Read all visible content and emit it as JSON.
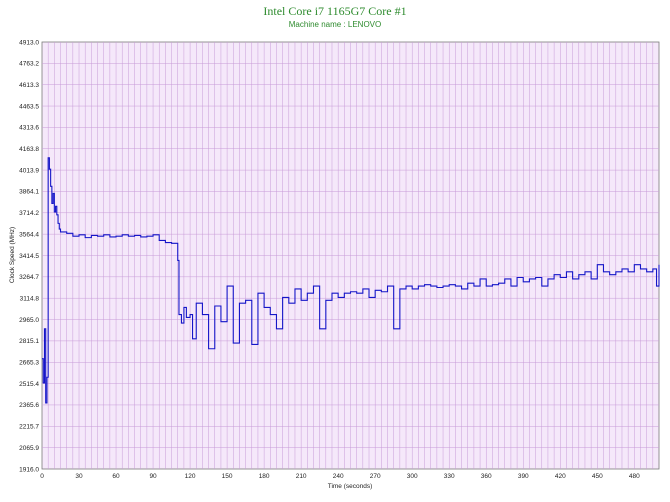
{
  "chart_data": {
    "type": "line",
    "title": "Intel Core i7 1165G7 Core #1",
    "subtitle": "Machine name : LENOVO",
    "xlabel": "Time (seconds)",
    "ylabel": "Clock Speed (MHz)",
    "xlim": [
      0,
      500
    ],
    "ylim": [
      1916.0,
      4913.0
    ],
    "x_ticks": [
      0,
      30,
      60,
      90,
      120,
      150,
      180,
      210,
      240,
      270,
      300,
      330,
      360,
      390,
      420,
      450,
      480
    ],
    "y_ticks": [
      "1916.0",
      "2065.9",
      "2215.7",
      "2365.6",
      "2515.4",
      "2665.3",
      "2815.1",
      "2965.0",
      "3114.8",
      "3264.7",
      "3414.5",
      "3564.4",
      "3714.2",
      "3864.1",
      "4013.9",
      "4163.8",
      "4313.6",
      "4463.5",
      "4613.3",
      "4763.2",
      "4913.0"
    ],
    "grid": true,
    "legend": "none",
    "colors": {
      "line": "#1515c8",
      "plot_background": "#f5e8fa",
      "grid": "#c89bd8",
      "title": "#2e8b2e"
    },
    "series": [
      {
        "values": [
          [
            0,
            2690
          ],
          [
            1,
            2520
          ],
          [
            2,
            2900
          ],
          [
            3,
            2380
          ],
          [
            4,
            2560
          ],
          [
            5,
            4100
          ],
          [
            6,
            4020
          ],
          [
            7,
            3900
          ],
          [
            8,
            3780
          ],
          [
            9,
            3850
          ],
          [
            10,
            3720
          ],
          [
            11,
            3760
          ],
          [
            12,
            3700
          ],
          [
            13,
            3640
          ],
          [
            14,
            3600
          ],
          [
            15,
            3580
          ],
          [
            20,
            3570
          ],
          [
            25,
            3550
          ],
          [
            30,
            3560
          ],
          [
            35,
            3540
          ],
          [
            40,
            3555
          ],
          [
            45,
            3550
          ],
          [
            50,
            3560
          ],
          [
            55,
            3545
          ],
          [
            60,
            3550
          ],
          [
            65,
            3560
          ],
          [
            70,
            3550
          ],
          [
            75,
            3555
          ],
          [
            80,
            3545
          ],
          [
            85,
            3550
          ],
          [
            90,
            3560
          ],
          [
            95,
            3520
          ],
          [
            100,
            3505
          ],
          [
            105,
            3500
          ],
          [
            108,
            3500
          ],
          [
            110,
            3380
          ],
          [
            111,
            3000
          ],
          [
            113,
            2940
          ],
          [
            115,
            3050
          ],
          [
            117,
            2980
          ],
          [
            120,
            3000
          ],
          [
            122,
            2830
          ],
          [
            125,
            3080
          ],
          [
            130,
            3000
          ],
          [
            135,
            2760
          ],
          [
            140,
            3060
          ],
          [
            145,
            2950
          ],
          [
            150,
            3200
          ],
          [
            155,
            2800
          ],
          [
            160,
            3080
          ],
          [
            165,
            3100
          ],
          [
            170,
            2790
          ],
          [
            175,
            3150
          ],
          [
            180,
            3050
          ],
          [
            185,
            3000
          ],
          [
            190,
            2900
          ],
          [
            195,
            3120
          ],
          [
            200,
            3080
          ],
          [
            205,
            3180
          ],
          [
            210,
            3100
          ],
          [
            215,
            3150
          ],
          [
            220,
            3200
          ],
          [
            225,
            2900
          ],
          [
            230,
            3100
          ],
          [
            235,
            3150
          ],
          [
            240,
            3120
          ],
          [
            245,
            3150
          ],
          [
            250,
            3160
          ],
          [
            255,
            3150
          ],
          [
            260,
            3180
          ],
          [
            265,
            3120
          ],
          [
            270,
            3170
          ],
          [
            275,
            3160
          ],
          [
            280,
            3200
          ],
          [
            285,
            2900
          ],
          [
            290,
            3180
          ],
          [
            295,
            3200
          ],
          [
            300,
            3180
          ],
          [
            305,
            3200
          ],
          [
            310,
            3210
          ],
          [
            315,
            3200
          ],
          [
            320,
            3190
          ],
          [
            325,
            3200
          ],
          [
            330,
            3210
          ],
          [
            335,
            3200
          ],
          [
            340,
            3180
          ],
          [
            345,
            3220
          ],
          [
            350,
            3200
          ],
          [
            355,
            3250
          ],
          [
            360,
            3200
          ],
          [
            365,
            3210
          ],
          [
            370,
            3220
          ],
          [
            375,
            3250
          ],
          [
            380,
            3200
          ],
          [
            385,
            3260
          ],
          [
            390,
            3230
          ],
          [
            395,
            3250
          ],
          [
            400,
            3260
          ],
          [
            405,
            3200
          ],
          [
            410,
            3250
          ],
          [
            415,
            3280
          ],
          [
            420,
            3260
          ],
          [
            425,
            3300
          ],
          [
            430,
            3250
          ],
          [
            435,
            3280
          ],
          [
            440,
            3300
          ],
          [
            445,
            3250
          ],
          [
            450,
            3350
          ],
          [
            455,
            3300
          ],
          [
            460,
            3280
          ],
          [
            465,
            3300
          ],
          [
            470,
            3320
          ],
          [
            475,
            3300
          ],
          [
            480,
            3350
          ],
          [
            485,
            3320
          ],
          [
            490,
            3300
          ],
          [
            495,
            3320
          ],
          [
            498,
            3200
          ],
          [
            500,
            3350
          ]
        ]
      }
    ]
  }
}
